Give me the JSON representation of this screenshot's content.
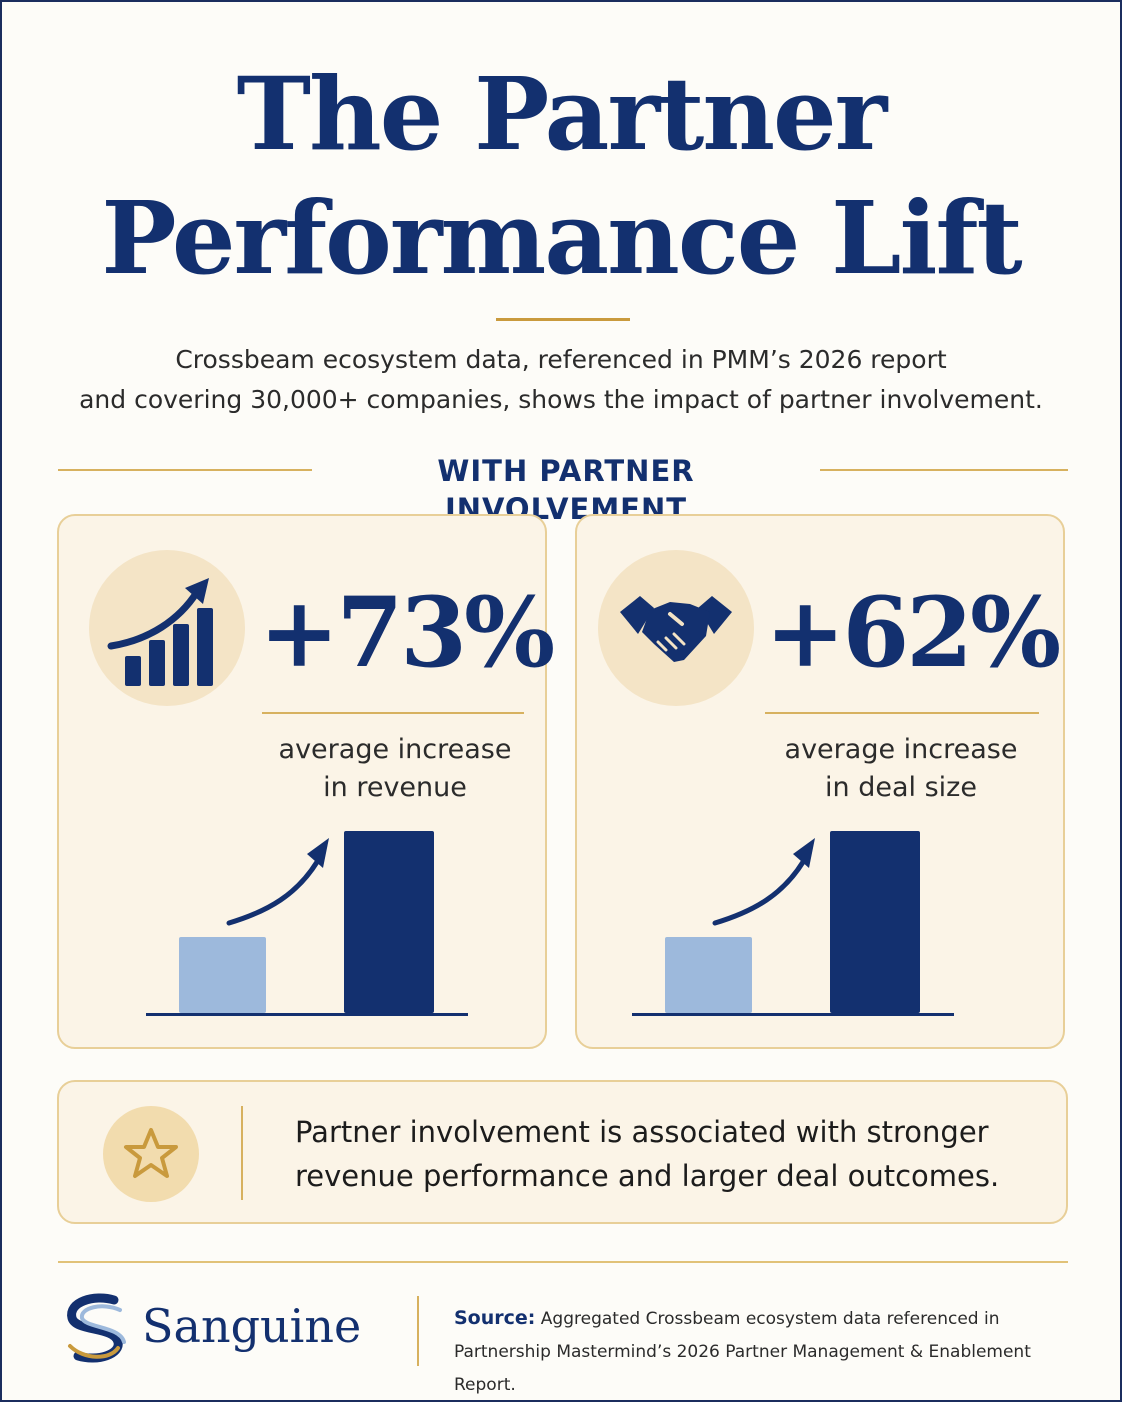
{
  "title": {
    "line1": "The Partner",
    "line2": "Performance Lift"
  },
  "subtitle": {
    "line1": "Crossbeam ecosystem data, referenced in PMM’s 2026 report",
    "line2": "and covering 30,000+ companies, shows the impact of partner involvement."
  },
  "section_label": "WITH PARTNER INVOLVEMENT",
  "stats": [
    {
      "icon": "growth-chart-icon",
      "value": "+73%",
      "desc_line1": "average increase",
      "desc_line2": "in revenue",
      "bars": [
        0.42,
        1.0
      ]
    },
    {
      "icon": "handshake-icon",
      "value": "+62%",
      "desc_line1": "average increase",
      "desc_line2": "in deal size",
      "bars": [
        0.42,
        1.0
      ]
    }
  ],
  "note": {
    "icon": "star-icon",
    "line1": "Partner involvement is associated with stronger",
    "line2": "revenue performance and larger deal outcomes."
  },
  "brand": {
    "name": "Sanguine",
    "logo": "sanguine-s-logo"
  },
  "source": {
    "label": "Source:",
    "line1": "Aggregated Crossbeam ecosystem data referenced in",
    "line2": "Partnership Mastermind’s 2026  Partner Management & Enablement Report."
  },
  "colors": {
    "navy": "#13306f",
    "gold": "#c99a3d",
    "light_bar": "#9db9dc",
    "card_bg": "#fbf4e7"
  }
}
